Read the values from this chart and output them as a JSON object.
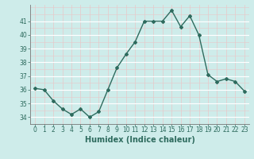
{
  "x": [
    0,
    1,
    2,
    3,
    4,
    5,
    6,
    7,
    8,
    9,
    10,
    11,
    12,
    13,
    14,
    15,
    16,
    17,
    18,
    19,
    20,
    21,
    22,
    23
  ],
  "y": [
    36.1,
    36.0,
    35.2,
    34.6,
    34.2,
    34.6,
    34.0,
    34.4,
    36.0,
    37.6,
    38.6,
    39.5,
    41.0,
    41.0,
    41.0,
    41.8,
    40.6,
    41.4,
    40.0,
    37.1,
    36.6,
    36.8,
    36.6,
    35.9
  ],
  "xlabel": "Humidex (Indice chaleur)",
  "ylim": [
    33.5,
    42.2
  ],
  "xlim": [
    -0.5,
    23.5
  ],
  "yticks": [
    34,
    35,
    36,
    37,
    38,
    39,
    40,
    41
  ],
  "xtick_labels": [
    "0",
    "1",
    "2",
    "3",
    "4",
    "5",
    "6",
    "7",
    "8",
    "9",
    "10",
    "11",
    "12",
    "13",
    "14",
    "15",
    "16",
    "17",
    "18",
    "19",
    "20",
    "21",
    "22",
    "23"
  ],
  "line_color": "#2e6b5e",
  "marker": "D",
  "marker_size": 2.0,
  "bg_color": "#ceecea",
  "grid_color_white": "#e8f8f7",
  "grid_color_pink": "#e8c8c8",
  "axes_color": "#777777",
  "tick_color": "#2e6b5e",
  "xlabel_color": "#2e6b5e",
  "xlabel_fontsize": 7.0,
  "tick_fontsize": 5.5
}
